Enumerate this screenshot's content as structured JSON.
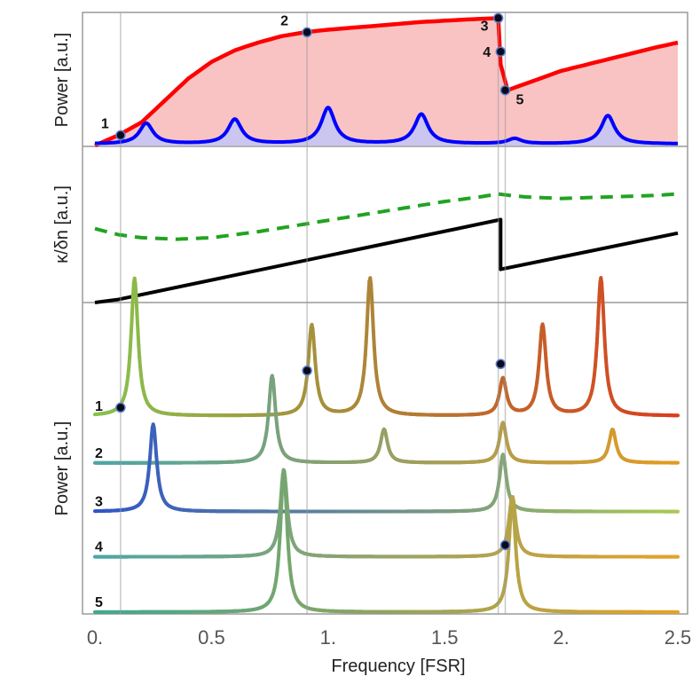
{
  "chart_data": [
    {
      "panel": "top",
      "type": "line",
      "ylabel": "Power [a.u.]",
      "xlim": [
        0,
        2.5
      ],
      "series": [
        {
          "name": "red envelope",
          "color": "#ff0000",
          "fill": "#f9c3c3",
          "x": [
            0.0,
            0.1,
            0.2,
            0.3,
            0.4,
            0.5,
            0.6,
            0.7,
            0.8,
            0.9,
            1.0,
            1.2,
            1.4,
            1.6,
            1.73,
            1.74,
            1.77,
            2.0,
            2.2,
            2.4,
            2.5
          ],
          "y": [
            0.0,
            0.08,
            0.18,
            0.35,
            0.52,
            0.65,
            0.74,
            0.8,
            0.85,
            0.88,
            0.9,
            0.93,
            0.96,
            0.98,
            0.99,
            0.63,
            0.43,
            0.58,
            0.67,
            0.76,
            0.8
          ]
        },
        {
          "name": "blue transmission",
          "color": "#0000ff",
          "fill": "#c4c7f4",
          "peaks": [
            {
              "x": 0.22,
              "height": 0.16
            },
            {
              "x": 0.6,
              "height": 0.19
            },
            {
              "x": 1.0,
              "height": 0.28
            },
            {
              "x": 1.4,
              "height": 0.23
            },
            {
              "x": 1.8,
              "height": 0.04
            },
            {
              "x": 2.2,
              "height": 0.22
            }
          ],
          "width": 0.035
        }
      ],
      "points": [
        {
          "label": "1",
          "x": 0.11,
          "y": 0.08
        },
        {
          "label": "2",
          "x": 0.91,
          "y": 0.88
        },
        {
          "label": "3",
          "x": 1.73,
          "y": 0.99
        },
        {
          "label": "4",
          "x": 1.74,
          "y": 0.73
        },
        {
          "label": "5",
          "x": 1.76,
          "y": 0.43
        }
      ]
    },
    {
      "panel": "middle",
      "type": "line",
      "ylabel": "κ/δn [a.u.]",
      "xlim": [
        0,
        2.5
      ],
      "series": [
        {
          "name": "green dashed",
          "color": "#22a322",
          "style": "dashed",
          "x": [
            0.0,
            0.1,
            0.2,
            0.35,
            0.5,
            0.7,
            0.9,
            1.1,
            1.3,
            1.5,
            1.65,
            1.73,
            1.78,
            1.85,
            2.0,
            2.2,
            2.4,
            2.5
          ],
          "y": [
            0.49,
            0.45,
            0.43,
            0.42,
            0.43,
            0.47,
            0.52,
            0.57,
            0.62,
            0.67,
            0.7,
            0.72,
            0.71,
            0.7,
            0.69,
            0.7,
            0.71,
            0.72
          ]
        },
        {
          "name": "black sawtooth",
          "color": "#000000",
          "style": "solid",
          "x": [
            0.0,
            0.1,
            1.74,
            1.74,
            2.5
          ],
          "y": [
            0.0,
            0.02,
            0.55,
            0.22,
            0.46
          ]
        }
      ]
    },
    {
      "panel": "bottom",
      "type": "line",
      "ylabel": "Power [a.u.]",
      "xlabel": "Frequency [FSR]",
      "xlim": [
        0,
        2.5
      ],
      "xticks": [
        {
          "value": 0,
          "label": "0."
        },
        {
          "value": 0.5,
          "label": "0.5"
        },
        {
          "value": 1,
          "label": "1."
        },
        {
          "value": 1.5,
          "label": "1.5"
        },
        {
          "value": 2,
          "label": "2."
        },
        {
          "value": 2.5,
          "label": "2.5"
        }
      ],
      "series": [
        {
          "name": "1",
          "baseline": 0.585,
          "peaks": [
            0.17,
            0.93,
            1.18,
            1.75,
            1.92,
            2.17
          ],
          "heights": [
            0.41,
            0.27,
            0.41,
            0.11,
            0.27,
            0.41
          ],
          "color_start": "#86c34e",
          "color_end": "#d9401e"
        },
        {
          "name": "2",
          "baseline": 0.445,
          "peaks": [
            0.76,
            1.24,
            1.75,
            2.22
          ],
          "heights": [
            0.26,
            0.1,
            0.12,
            0.1
          ],
          "color_start": "#4aa6a6",
          "color_end": "#e39a22"
        },
        {
          "name": "3",
          "baseline": 0.3,
          "peaks": [
            0.25,
            1.75
          ],
          "heights": [
            0.26,
            0.17
          ],
          "color_start": "#2f55c8",
          "color_end": "#a9c853"
        },
        {
          "name": "4",
          "baseline": 0.165,
          "peaks": [
            0.81,
            1.79
          ],
          "heights": [
            0.26,
            0.18
          ],
          "color_start": "#4aa6a6",
          "color_end": "#e3a22a"
        },
        {
          "name": "5",
          "baseline": 0.0,
          "peaks": [
            0.81,
            1.79
          ],
          "heights": [
            0.42,
            0.33
          ],
          "color_start": "#3fa891",
          "color_end": "#e3a22a"
        }
      ],
      "points": [
        {
          "series": "1",
          "x": 0.11,
          "y": 0.61
        },
        {
          "series": "2",
          "x": 0.91,
          "y": 0.72
        },
        {
          "series": "3",
          "x": 1.74,
          "y": 0.74
        },
        {
          "series": "4",
          "x": 1.76,
          "y": 0.2
        }
      ]
    }
  ]
}
